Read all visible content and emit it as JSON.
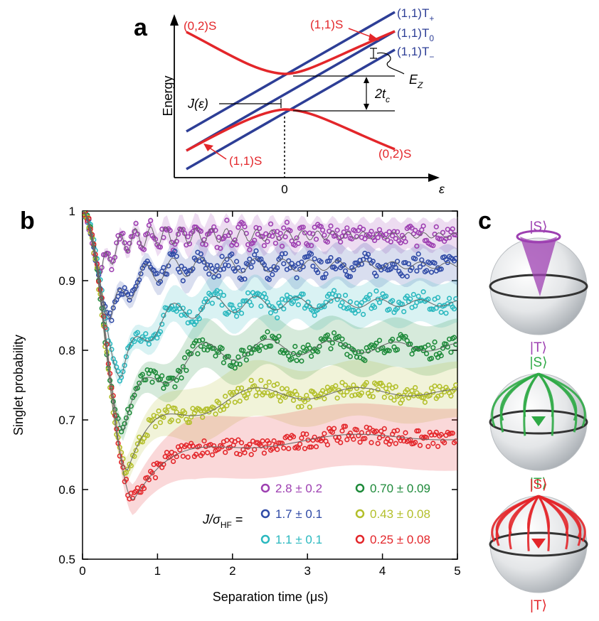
{
  "panels": {
    "a": "a",
    "b": "b",
    "c": "c"
  },
  "chart_data": [
    {
      "type": "line",
      "title": "",
      "xlabel": "ε",
      "ylabel": "Energy",
      "x_tick": "0",
      "labels": {
        "s02_left": "(0,2)S",
        "s11_top": "(1,1)S",
        "t_plus_base": "(1,1)T",
        "t_plus_sub": "+",
        "t_zero_base": "(1,1)T",
        "t_zero_sub": "0",
        "t_minus_base": "(1,1)T",
        "t_minus_sub": "−",
        "ez_base": "E",
        "ez_sub": "Z",
        "tc_base": "2t",
        "tc_sub": "c",
        "j_label": "J(ε)",
        "s11_bottom": "(1,1)S",
        "s02_right": "(0,2)S"
      },
      "series": [
        {
          "name": "(0,2)S / (1,1)S",
          "color": "#e3262a"
        },
        {
          "name": "(1,1)T+",
          "color": "#2d3e96"
        },
        {
          "name": "(1,1)T0",
          "color": "#2d3e96"
        },
        {
          "name": "(1,1)T−",
          "color": "#2d3e96"
        }
      ]
    },
    {
      "type": "scatter",
      "title": "",
      "xlabel": "Separation time (μs)",
      "ylabel": "Singlet probability",
      "xlim": [
        0,
        5
      ],
      "ylim": [
        0.5,
        1.0
      ],
      "x_ticks": [
        "0",
        "1",
        "2",
        "3",
        "4",
        "5"
      ],
      "y_ticks": [
        "0.5",
        "0.6",
        "0.7",
        "0.8",
        "0.9",
        "1"
      ],
      "legend_title_base": "J/σ",
      "legend_title_sub": "HF",
      "legend_title_eq": " =",
      "series": [
        {
          "name": "2.8 ± 0.2",
          "color": "#9d3fb1",
          "plateau": 0.965,
          "dip_t": 0.25,
          "dip_p": 0.91,
          "freq": 1.9,
          "amp": 0.018
        },
        {
          "name": "1.7 ± 0.1",
          "color": "#2f4aa6",
          "plateau": 0.922,
          "dip_t": 0.38,
          "dip_p": 0.845,
          "freq": 1.05,
          "amp": 0.02
        },
        {
          "name": "1.1 ± 0.1",
          "color": "#2ab8bf",
          "plateau": 0.868,
          "dip_t": 0.52,
          "dip_p": 0.76,
          "freq": 0.7,
          "amp": 0.02
        },
        {
          "name": "0.70 ± 0.09",
          "color": "#1e8a3a",
          "plateau": 0.805,
          "dip_t": 0.55,
          "dip_p": 0.685,
          "freq": 0.45,
          "amp": 0.025
        },
        {
          "name": "0.43 ± 0.08",
          "color": "#b3bf2a",
          "plateau": 0.74,
          "dip_t": 0.6,
          "dip_p": 0.628,
          "freq": 0.28,
          "amp": 0.02
        },
        {
          "name": "0.25 ± 0.08",
          "color": "#e3262a",
          "plateau": 0.675,
          "dip_t": 0.68,
          "dip_p": 0.585,
          "freq": 0.16,
          "amp": 0.015
        }
      ]
    }
  ],
  "bloch": [
    {
      "top": "|S⟩",
      "bottom": "|T⟩",
      "color": "#9d3fb1"
    },
    {
      "top": "|S⟩",
      "bottom": "|T⟩",
      "color": "#2faa46"
    },
    {
      "top": "|S⟩",
      "bottom": "|T⟩",
      "color": "#e3262a"
    }
  ]
}
